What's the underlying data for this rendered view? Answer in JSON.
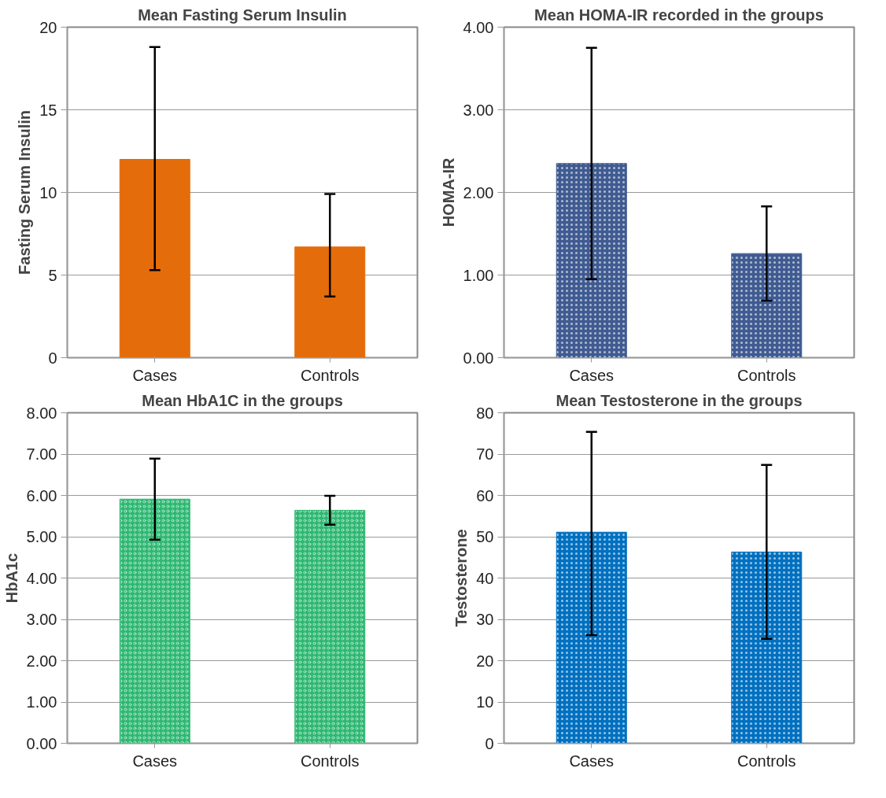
{
  "chart_data": [
    {
      "type": "bar",
      "title": "Mean Fasting Serum Insulin",
      "ylabel": "Fasting Serum Insulin",
      "categories": [
        "Cases",
        "Controls"
      ],
      "values": [
        12.0,
        6.7
      ],
      "errors": [
        [
          5.3,
          18.8
        ],
        [
          3.7,
          9.9
        ]
      ],
      "color": "#e46c0a",
      "ylim": [
        0,
        20
      ],
      "yticks": [
        0,
        5,
        10,
        15,
        20
      ],
      "grid": "y"
    },
    {
      "type": "bar",
      "title": "Mean HOMA-IR recorded in the groups",
      "ylabel": "HOMA-IR",
      "categories": [
        "Cases",
        "Controls"
      ],
      "values": [
        2.35,
        1.26
      ],
      "errors": [
        [
          0.95,
          3.75
        ],
        [
          0.69,
          1.83
        ]
      ],
      "color": "#3f5b91",
      "ylim": [
        0,
        4
      ],
      "yticks": [
        {
          "value": 0,
          "label": "0.00"
        },
        {
          "value": 1,
          "label": "1.00"
        },
        {
          "value": 2,
          "label": "2.00"
        },
        {
          "value": 3,
          "label": "3.00"
        },
        {
          "value": 4,
          "label": "4.00"
        }
      ],
      "grid": "y"
    },
    {
      "type": "bar",
      "title": "Mean HbA1C in the groups",
      "ylabel": "HbA1c",
      "categories": [
        "Cases",
        "Controls"
      ],
      "values": [
        5.91,
        5.64
      ],
      "errors": [
        [
          4.93,
          6.89
        ],
        [
          5.29,
          5.99
        ]
      ],
      "color": "#2eb872",
      "ylim": [
        0,
        8
      ],
      "yticks": [
        {
          "value": 0,
          "label": "0.00"
        },
        {
          "value": 1,
          "label": "1.00"
        },
        {
          "value": 2,
          "label": "2.00"
        },
        {
          "value": 3,
          "label": "3.00"
        },
        {
          "value": 4,
          "label": "4.00"
        },
        {
          "value": 5,
          "label": "5.00"
        },
        {
          "value": 6,
          "label": "6.00"
        },
        {
          "value": 7,
          "label": "7.00"
        },
        {
          "value": 8,
          "label": "8.00"
        }
      ],
      "grid": "y"
    },
    {
      "type": "bar",
      "title": "Mean Testosterone in the groups",
      "ylabel": "Testosterone",
      "categories": [
        "Cases",
        "Controls"
      ],
      "values": [
        51.1,
        46.3
      ],
      "errors": [
        [
          26.2,
          75.4
        ],
        [
          25.3,
          67.4
        ]
      ],
      "color": "#0070c0",
      "ylim": [
        0,
        80
      ],
      "yticks": [
        0,
        10,
        20,
        30,
        40,
        50,
        60,
        70,
        80
      ],
      "grid": "y"
    }
  ]
}
